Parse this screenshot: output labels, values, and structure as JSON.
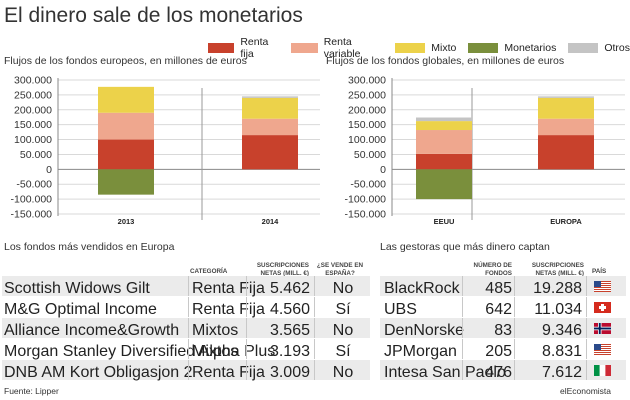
{
  "title": "El dinero sale de los monetarios",
  "legend": [
    {
      "label": "Renta fija",
      "color": "#c8412c"
    },
    {
      "label": "Renta variable",
      "color": "#efa78e"
    },
    {
      "label": "Mixto",
      "color": "#ecd24a"
    },
    {
      "label": "Monetarios",
      "color": "#7a8f3c"
    },
    {
      "label": "Otros",
      "color": "#c4c4c4"
    }
  ],
  "chart_data": [
    {
      "type": "bar",
      "stacked": true,
      "title": "Flujos de los fondos europeos, en millones de euros",
      "categories": [
        "2013",
        "2014"
      ],
      "ylim": [
        -150000,
        300000
      ],
      "yticks": [
        "300.000",
        "250.000",
        "200.000",
        "150.000",
        "100.000",
        "50.000",
        "0",
        "-50.000",
        "-100.000",
        "-150.000"
      ],
      "series": [
        {
          "name": "Renta fija",
          "values": [
            100000,
            115000
          ]
        },
        {
          "name": "Renta variable",
          "values": [
            90000,
            55000
          ]
        },
        {
          "name": "Mixto",
          "values": [
            87000,
            70000
          ]
        },
        {
          "name": "Monetarios",
          "values": [
            -85000,
            0
          ]
        },
        {
          "name": "Otros",
          "values": [
            0,
            5000
          ]
        }
      ]
    },
    {
      "type": "bar",
      "stacked": true,
      "title": "Flujos de los fondos globales, en millones de euros",
      "categories": [
        "EEUU",
        "EUROPA"
      ],
      "ylim": [
        -150000,
        300000
      ],
      "yticks": [
        "300.000",
        "250.000",
        "200.000",
        "150.000",
        "100.000",
        "50.000",
        "0",
        "-50.000",
        "-100.000",
        "-150.000"
      ],
      "series": [
        {
          "name": "Renta fija",
          "values": [
            52000,
            115000
          ]
        },
        {
          "name": "Renta variable",
          "values": [
            80000,
            55000
          ]
        },
        {
          "name": "Mixto",
          "values": [
            30000,
            70000
          ]
        },
        {
          "name": "Monetarios",
          "values": [
            -100000,
            0
          ]
        },
        {
          "name": "Otros",
          "values": [
            12000,
            5000
          ]
        }
      ]
    }
  ],
  "fondos": {
    "title": "Los fondos más vendidos en Europa",
    "headers": {
      "categoria": "CATEGORÍA",
      "suscripciones": "SUSCRIPCIONES NETAS (MILL. €)",
      "espana": "¿SE VENDE EN ESPAÑA?"
    },
    "rows": [
      {
        "name": "Scottish Widows Gilt",
        "categoria": "Renta Fija",
        "suscripciones": "5.462",
        "espana": "No"
      },
      {
        "name": "M&G Optimal Income",
        "categoria": "Renta Fija",
        "suscripciones": "4.560",
        "espana": "Sí"
      },
      {
        "name": "Alliance Income&Growth",
        "categoria": "Mixtos",
        "suscripciones": "3.565",
        "espana": "No"
      },
      {
        "name": "Morgan Stanley Diversified Alpha Plus",
        "categoria": "Mixtos",
        "suscripciones": "3.193",
        "espana": "Sí"
      },
      {
        "name": "DNB AM Kort Obligasjon 2",
        "categoria": "Renta Fija",
        "suscripciones": "3.009",
        "espana": "No"
      }
    ]
  },
  "gestoras": {
    "title": "Las gestoras que más dinero captan",
    "headers": {
      "fondos": "NÚMERO DE FONDOS",
      "suscripciones": "SUSCRIPCIONES NETAS (MILL. €)",
      "pais": "PAÍS"
    },
    "rows": [
      {
        "name": "BlackRock",
        "fondos": "485",
        "suscripciones": "19.288",
        "flag": "us-flag-icon"
      },
      {
        "name": "UBS",
        "fondos": "642",
        "suscripciones": "11.034",
        "flag": "switzerland-flag-icon"
      },
      {
        "name": "DenNorske",
        "fondos": "83",
        "suscripciones": "9.346",
        "flag": "norway-flag-icon"
      },
      {
        "name": "JPMorgan",
        "fondos": "205",
        "suscripciones": "8.831",
        "flag": "us-flag-icon"
      },
      {
        "name": "Intesa San Paolo",
        "fondos": "476",
        "suscripciones": "7.612",
        "flag": "italy-flag-icon"
      }
    ]
  },
  "footer": {
    "source": "Fuente: Lipper",
    "brand": "elEconomista"
  }
}
